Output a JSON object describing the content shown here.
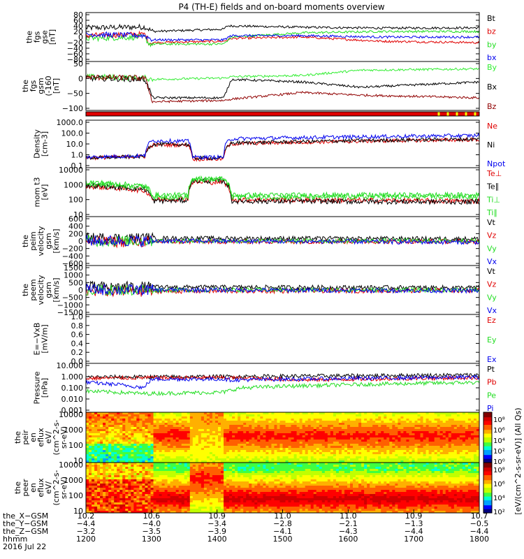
{
  "title": "P4 (TH-E) fields and on-board moments overview",
  "colors": {
    "black": "#000000",
    "red": "#e00000",
    "green": "#22dd22",
    "blue": "#0000ee",
    "darkred": "#900000",
    "bright_green": "#33ee33"
  },
  "chart_data": [
    {
      "id": "fgs_gse",
      "type": "line",
      "ylabel": [
        "the",
        "fgs",
        "gse",
        "[nT]"
      ],
      "yticks": [
        "80",
        "60",
        "40",
        "20",
        "0",
        "−20",
        "−40",
        "−60",
        "−80"
      ],
      "ylim": [
        -80,
        80
      ],
      "series": [
        {
          "name": "Bt",
          "color": "#000000",
          "level": [
            [
              0,
              33
            ],
            [
              0.15,
              36
            ],
            [
              0.17,
              20
            ],
            [
              0.35,
              28
            ],
            [
              0.36,
              40
            ],
            [
              0.55,
              35
            ],
            [
              0.75,
              32
            ],
            [
              1,
              33
            ]
          ]
        },
        {
          "name": "bz",
          "color": "#e00000",
          "level": [
            [
              0,
              5
            ],
            [
              0.15,
              10
            ],
            [
              0.16,
              -20
            ],
            [
              0.35,
              -15
            ],
            [
              0.37,
              -5
            ],
            [
              0.55,
              0
            ],
            [
              0.75,
              -15
            ],
            [
              1,
              -20
            ]
          ]
        },
        {
          "name": "by",
          "color": "#22dd22",
          "level": [
            [
              0,
              -5
            ],
            [
              0.15,
              0
            ],
            [
              0.16,
              -25
            ],
            [
              0.35,
              -25
            ],
            [
              0.37,
              0
            ],
            [
              0.55,
              15
            ],
            [
              0.75,
              20
            ],
            [
              1,
              20
            ]
          ]
        },
        {
          "name": "bx",
          "color": "#0000ee",
          "level": [
            [
              0,
              10
            ],
            [
              0.15,
              5
            ],
            [
              0.17,
              -10
            ],
            [
              0.35,
              -10
            ],
            [
              0.37,
              5
            ],
            [
              0.55,
              5
            ],
            [
              0.75,
              0
            ],
            [
              1,
              0
            ]
          ]
        }
      ]
    },
    {
      "id": "fgs_gsm",
      "type": "line",
      "ylabel": [
        "the",
        "fgs",
        "gsm",
        "(-160",
        "[nT]"
      ],
      "yticks": [
        "50",
        "0",
        "−50",
        "−100"
      ],
      "ylim": [
        -120,
        50
      ],
      "series": [
        {
          "name": "By",
          "color": "#33ee33",
          "level": [
            [
              0,
              0
            ],
            [
              0.15,
              -5
            ],
            [
              0.17,
              -10
            ],
            [
              0.35,
              -5
            ],
            [
              0.37,
              0
            ],
            [
              0.55,
              5
            ],
            [
              0.7,
              25
            ],
            [
              1,
              30
            ]
          ]
        },
        {
          "name": "Bx",
          "color": "#000000",
          "level": [
            [
              0,
              -5
            ],
            [
              0.15,
              -10
            ],
            [
              0.17,
              -80
            ],
            [
              0.35,
              -80
            ],
            [
              0.37,
              -10
            ],
            [
              0.55,
              -20
            ],
            [
              0.7,
              -40
            ],
            [
              1,
              -20
            ]
          ]
        },
        {
          "name": "Bz",
          "color": "#900000",
          "level": [
            [
              0,
              -2
            ],
            [
              0.15,
              -5
            ],
            [
              0.17,
              -95
            ],
            [
              0.35,
              -90
            ],
            [
              0.37,
              -85
            ],
            [
              0.55,
              -60
            ],
            [
              0.7,
              -70
            ],
            [
              1,
              -80
            ]
          ]
        }
      ]
    },
    {
      "id": "density",
      "type": "line",
      "log": true,
      "ylabel": [
        "Density",
        "[cm-3]"
      ],
      "yticks": [
        "1000.0",
        "100.0",
        "10.0",
        "1.0",
        "0.1"
      ],
      "ylim": [
        0.1,
        1000
      ],
      "series": [
        {
          "name": "Ne",
          "color": "#e00000",
          "level": [
            [
              0,
              0.5
            ],
            [
              0.15,
              0.7
            ],
            [
              0.17,
              8
            ],
            [
              0.26,
              8
            ],
            [
              0.27,
              0.4
            ],
            [
              0.35,
              0.4
            ],
            [
              0.37,
              10
            ],
            [
              1,
              25
            ]
          ]
        },
        {
          "name": "Ni",
          "color": "#000000",
          "level": [
            [
              0,
              0.5
            ],
            [
              0.15,
              0.7
            ],
            [
              0.17,
              9
            ],
            [
              0.26,
              9
            ],
            [
              0.27,
              0.5
            ],
            [
              0.35,
              0.5
            ],
            [
              0.37,
              12
            ],
            [
              1,
              28
            ]
          ]
        },
        {
          "name": "Npot",
          "color": "#0000ee",
          "level": [
            [
              0,
              0.6
            ],
            [
              0.15,
              0.8
            ],
            [
              0.17,
              20
            ],
            [
              0.26,
              18
            ],
            [
              0.27,
              0.6
            ],
            [
              0.35,
              0.6
            ],
            [
              0.37,
              30
            ],
            [
              1,
              60
            ]
          ]
        }
      ]
    },
    {
      "id": "temperature",
      "type": "line",
      "log": true,
      "ylabel": [
        "mom t3",
        "[eV]"
      ],
      "yticks": [
        "10000",
        "1000",
        "100",
        "10"
      ],
      "ylim": [
        10,
        10000
      ],
      "series": [
        {
          "name": "Te⊥",
          "color": "#e00000",
          "level": [
            [
              0,
              800
            ],
            [
              0.15,
              400
            ],
            [
              0.17,
              100
            ],
            [
              0.26,
              120
            ],
            [
              0.27,
              1500
            ],
            [
              0.35,
              1500
            ],
            [
              0.37,
              100
            ],
            [
              1,
              80
            ]
          ]
        },
        {
          "name": "Te∥",
          "color": "#000000",
          "level": [
            [
              0,
              900
            ],
            [
              0.15,
              500
            ],
            [
              0.17,
              80
            ],
            [
              0.26,
              90
            ],
            [
              0.27,
              1800
            ],
            [
              0.35,
              1800
            ],
            [
              0.37,
              80
            ],
            [
              1,
              70
            ]
          ]
        },
        {
          "name": "Ti⊥",
          "color": "#22dd22",
          "level": [
            [
              0,
              1500
            ],
            [
              0.15,
              800
            ],
            [
              0.17,
              200
            ],
            [
              0.26,
              200
            ],
            [
              0.27,
              2500
            ],
            [
              0.35,
              2500
            ],
            [
              0.37,
              200
            ],
            [
              1,
              200
            ]
          ]
        },
        {
          "name": "Ti∥",
          "color": "#22dd22",
          "level": [
            [
              0,
              1200
            ],
            [
              0.15,
              700
            ],
            [
              0.17,
              150
            ],
            [
              0.26,
              150
            ],
            [
              0.27,
              2200
            ],
            [
              0.35,
              2200
            ],
            [
              0.37,
              150
            ],
            [
              1,
              150
            ]
          ]
        }
      ]
    },
    {
      "id": "peim_velocity",
      "type": "line",
      "ylabel": [
        "the",
        "peim",
        "velocity",
        "gsm",
        "[km/s]"
      ],
      "yticks": [
        "600",
        "400",
        "200",
        "0",
        "−200",
        "−400",
        "−600"
      ],
      "ylim": [
        -600,
        600
      ],
      "series": [
        {
          "name": "Vt",
          "color": "#000000",
          "level": [
            [
              0,
              80
            ],
            [
              1,
              60
            ]
          ]
        },
        {
          "name": "Vz",
          "color": "#e00000",
          "level": [
            [
              0,
              -20
            ],
            [
              1,
              -10
            ]
          ]
        },
        {
          "name": "Vy",
          "color": "#22dd22",
          "level": [
            [
              0,
              0
            ],
            [
              1,
              10
            ]
          ]
        },
        {
          "name": "Vx",
          "color": "#0000ee",
          "level": [
            [
              0,
              10
            ],
            [
              1,
              -30
            ]
          ]
        }
      ]
    },
    {
      "id": "peem_velocity",
      "type": "line",
      "ylabel": [
        "the",
        "peem",
        "velocity",
        "gsm",
        "[km/s]"
      ],
      "yticks": [
        "1500",
        "1000",
        "500",
        "0",
        "−500",
        "−1000",
        "−1500"
      ],
      "ylim": [
        -1500,
        1500
      ],
      "series": [
        {
          "name": "Vt",
          "color": "#000000",
          "level": [
            [
              0,
              200
            ],
            [
              1,
              150
            ]
          ]
        },
        {
          "name": "Vz",
          "color": "#e00000",
          "level": [
            [
              0,
              -100
            ],
            [
              1,
              -30
            ]
          ]
        },
        {
          "name": "Vy",
          "color": "#22dd22",
          "level": [
            [
              0,
              0
            ],
            [
              1,
              0
            ]
          ]
        },
        {
          "name": "Vx",
          "color": "#0000ee",
          "level": [
            [
              0,
              20
            ],
            [
              1,
              -50
            ]
          ]
        }
      ]
    },
    {
      "id": "efield",
      "type": "line",
      "ylabel": [
        "E=−VxB",
        "[mV/m]"
      ],
      "yticks": [
        "1.0",
        "0.8",
        "0.6",
        "0.4",
        "0.2",
        "0.0"
      ],
      "ylim": [
        0,
        1
      ],
      "series": [
        {
          "name": "Ez",
          "color": "#e00000"
        },
        {
          "name": "Ey",
          "color": "#22dd22"
        },
        {
          "name": "Ex",
          "color": "#0000ee"
        }
      ]
    },
    {
      "id": "pressure",
      "type": "line",
      "log": true,
      "ylabel": [
        "Pressure",
        "[nPa]"
      ],
      "yticks": [
        "10.000",
        "1.000",
        "0.100",
        "0.010",
        "0.001"
      ],
      "ylim": [
        0.001,
        10
      ],
      "series": [
        {
          "name": "Pt",
          "color": "#000000",
          "level": [
            [
              0,
              0.9
            ],
            [
              0.35,
              1.0
            ],
            [
              1,
              1.4
            ]
          ]
        },
        {
          "name": "Pb",
          "color": "#e00000",
          "level": [
            [
              0,
              0.7
            ],
            [
              0.15,
              0.8
            ],
            [
              0.35,
              0.8
            ],
            [
              0.55,
              0.5
            ],
            [
              1,
              0.8
            ]
          ]
        },
        {
          "name": "Pe",
          "color": "#22dd22",
          "level": [
            [
              0,
              0.05
            ],
            [
              0.15,
              0.03
            ],
            [
              0.35,
              0.04
            ],
            [
              0.4,
              0.1
            ],
            [
              1,
              0.3
            ]
          ]
        },
        {
          "name": "Pi",
          "color": "#0000ee",
          "level": [
            [
              0,
              0.3
            ],
            [
              0.15,
              0.1
            ],
            [
              0.17,
              0.6
            ],
            [
              0.35,
              0.6
            ],
            [
              0.37,
              0.5
            ],
            [
              1,
              0.9
            ]
          ]
        }
      ]
    },
    {
      "id": "peir_spectrogram",
      "type": "heatmap",
      "ylabel": [
        "the",
        "peir",
        "en",
        "eflux",
        "eV/",
        "(cm^2-s-",
        "sr-eV)"
      ],
      "yticks": [
        "10000",
        "1000",
        "100",
        "10"
      ],
      "colorbar_ticks": [
        "10⁸",
        "10⁶",
        "10⁴",
        "10²",
        "10⁰"
      ]
    },
    {
      "id": "peer_spectrogram",
      "type": "heatmap",
      "ylabel": [
        "the",
        "peer",
        "en",
        "eflux",
        "eV/",
        "(cm^2-s-",
        "sr-eV)"
      ],
      "yticks": [
        "10000",
        "1000",
        "100",
        "10"
      ],
      "colorbar_ticks": [
        "10⁸",
        "10⁶",
        "10⁴",
        "10²"
      ]
    }
  ],
  "colorbar_label": "[eV/(cm^2-s-sr-eV)] (All Qs)",
  "x_axis": {
    "row_labels": [
      "the_X−GSM",
      "the_Y−GSM",
      "the_Z−GSM",
      "hhmm",
      "2016 Jul 22"
    ],
    "columns": [
      [
        "10.2",
        "−4.4",
        "−3.2",
        "1200"
      ],
      [
        "10.6",
        "−4.0",
        "−3.5",
        "1300"
      ],
      [
        "10.9",
        "−3.4",
        "−3.9",
        "1400"
      ],
      [
        "11.0",
        "−2.8",
        "−4.1",
        "1500"
      ],
      [
        "11.0",
        "−2.1",
        "−4.3",
        "1600"
      ],
      [
        "10.9",
        "−1.3",
        "−4.4",
        "1700"
      ],
      [
        "10.7",
        "−0.5",
        "−4.4",
        "1800"
      ]
    ]
  }
}
